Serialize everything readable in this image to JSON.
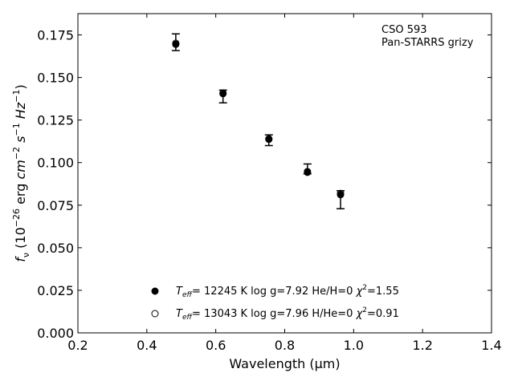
{
  "chart_data": {
    "type": "scatter",
    "xlabel": "Wavelength (μm)",
    "ylabel_parts": [
      "f",
      "ν",
      " (10",
      "−26",
      " erg ",
      "cm",
      "−2",
      " ",
      "s",
      "−1",
      " ",
      "Hz",
      "−1",
      ")"
    ],
    "xlim": [
      0.2,
      1.4
    ],
    "ylim": [
      0.0,
      0.1875
    ],
    "x_ticks": [
      0.2,
      0.4,
      0.6,
      0.8,
      1.0,
      1.2,
      1.4
    ],
    "x_tick_labels": [
      "0.2",
      "0.4",
      "0.6",
      "0.8",
      "1.0",
      "1.2",
      "1.4"
    ],
    "y_ticks": [
      0.0,
      0.025,
      0.05,
      0.075,
      0.1,
      0.125,
      0.15,
      0.175
    ],
    "y_tick_labels": [
      "0.000",
      "0.025",
      "0.050",
      "0.075",
      "0.100",
      "0.125",
      "0.150",
      "0.175"
    ],
    "grid": false,
    "annotation": [
      "CSO 593",
      "Pan-STARRS grizy"
    ],
    "observed": {
      "x": [
        0.484,
        0.621,
        0.754,
        0.866,
        0.962
      ],
      "y": [
        0.1707,
        0.1393,
        0.1133,
        0.0958,
        0.0784
      ],
      "yerr_low": [
        0.0049,
        0.0042,
        0.0033,
        0.0024,
        0.0055
      ],
      "yerr_high": [
        0.0049,
        0.0033,
        0.003,
        0.0034,
        0.0051
      ]
    },
    "series": [
      {
        "marker": "filled",
        "x": [
          0.484,
          0.621,
          0.754,
          0.866,
          0.962
        ],
        "y": [
          0.1695,
          0.1405,
          0.1137,
          0.0943,
          0.0812
        ],
        "legend": {
          "teff_label": "T",
          "teff_sub": "eff",
          "rest": "= 12245 K  log g=7.92  He/H=0  ",
          "chi": "χ",
          "chi_sup": "2",
          "chi_val": "=1.55"
        }
      },
      {
        "marker": "open",
        "x": [
          0.484,
          0.621,
          0.754,
          0.866,
          0.962
        ],
        "y": [
          0.1701,
          0.1409,
          0.114,
          0.0947,
          0.0819
        ],
        "legend": {
          "teff_label": "T",
          "teff_sub": "eff",
          "rest": "= 13043 K  log g=7.96  H/He=0  ",
          "chi": "χ",
          "chi_sup": "2",
          "chi_val": "=0.91"
        }
      }
    ]
  }
}
